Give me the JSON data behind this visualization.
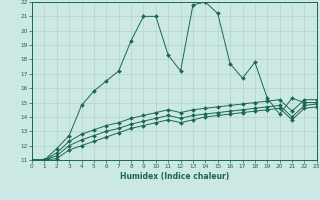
{
  "xlabel": "Humidex (Indice chaleur)",
  "bg_color": "#cce8e4",
  "grid_color": "#b0d4cc",
  "line_color": "#1a6655",
  "xlim": [
    0,
    23
  ],
  "ylim": [
    11,
    22
  ],
  "xticks": [
    0,
    1,
    2,
    3,
    4,
    5,
    6,
    7,
    8,
    9,
    10,
    11,
    12,
    13,
    14,
    15,
    16,
    17,
    18,
    19,
    20,
    21,
    22,
    23
  ],
  "yticks": [
    11,
    12,
    13,
    14,
    15,
    16,
    17,
    18,
    19,
    20,
    21,
    22
  ],
  "series": [
    {
      "x": [
        0,
        1,
        2,
        3,
        4,
        5,
        6,
        7,
        8,
        9,
        10,
        11,
        12,
        13,
        14,
        15,
        16,
        17,
        18,
        19,
        20,
        21,
        22,
        23
      ],
      "y": [
        11,
        11,
        11.8,
        12.7,
        14.8,
        15.8,
        16.5,
        17.2,
        19.3,
        21.0,
        21.0,
        18.3,
        17.2,
        21.8,
        22.0,
        21.2,
        17.7,
        16.7,
        17.8,
        15.3,
        14.2,
        15.3,
        15.0,
        15.0
      ]
    },
    {
      "x": [
        0,
        1,
        2,
        3,
        4,
        5,
        6,
        7,
        8,
        9,
        10,
        11,
        12,
        13,
        14,
        15,
        16,
        17,
        18,
        19,
        20,
        21,
        22,
        23
      ],
      "y": [
        11,
        11,
        11.5,
        12.3,
        12.8,
        13.1,
        13.4,
        13.6,
        13.9,
        14.1,
        14.3,
        14.5,
        14.3,
        14.5,
        14.6,
        14.7,
        14.8,
        14.9,
        15.0,
        15.1,
        15.2,
        14.4,
        15.2,
        15.2
      ]
    },
    {
      "x": [
        0,
        1,
        2,
        3,
        4,
        5,
        6,
        7,
        8,
        9,
        10,
        11,
        12,
        13,
        14,
        15,
        16,
        17,
        18,
        19,
        20,
        21,
        22,
        23
      ],
      "y": [
        11,
        11,
        11.3,
        12.0,
        12.4,
        12.7,
        13.0,
        13.2,
        13.5,
        13.7,
        13.9,
        14.1,
        13.9,
        14.1,
        14.2,
        14.3,
        14.4,
        14.5,
        14.6,
        14.7,
        14.8,
        14.0,
        14.8,
        14.9
      ]
    },
    {
      "x": [
        0,
        1,
        2,
        3,
        4,
        5,
        6,
        7,
        8,
        9,
        10,
        11,
        12,
        13,
        14,
        15,
        16,
        17,
        18,
        19,
        20,
        21,
        22,
        23
      ],
      "y": [
        11,
        11,
        11.1,
        11.7,
        12.0,
        12.3,
        12.6,
        12.9,
        13.2,
        13.4,
        13.6,
        13.8,
        13.6,
        13.8,
        14.0,
        14.1,
        14.2,
        14.3,
        14.4,
        14.5,
        14.6,
        13.8,
        14.6,
        14.7
      ]
    }
  ]
}
